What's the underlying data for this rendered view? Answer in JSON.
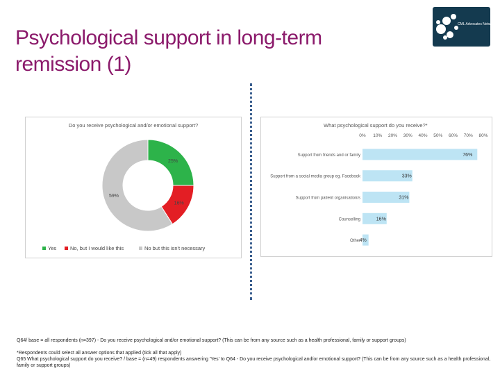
{
  "page": {
    "title_line1": "Psychological support in long-term",
    "title_line2": "remission (1)",
    "logo_text": "CML Advocates Network",
    "footnote1": "Q64/ base = all respondents (n=397) - Do you receive psychological and/or emotional support? (This can be from any source such as a health professional, family or support groups)",
    "footnote2": "*Respondents could select all answer options that applied (tick all that apply)",
    "footnote3": "Q65 What psychological support do you receive? / base = (n=49) respondents answering 'Yes' to Q64 - Do you receive psychological and/or emotional support? (This can be from any source such as a health professional, family or support groups)"
  },
  "chart_data": [
    {
      "type": "pie",
      "title": "Do you receive psychological and/or emotional support?",
      "categories": [
        "Yes",
        "No, but I would like this",
        "No but this isn't necessary"
      ],
      "values": [
        25,
        16,
        59
      ],
      "labels": [
        "25%",
        "16%",
        "59%"
      ],
      "colors": [
        "#2db34a",
        "#e31e24",
        "#c8c8c8"
      ],
      "legend": "bottom"
    },
    {
      "type": "bar",
      "orientation": "horizontal",
      "title": "What psychological support do you receive?*",
      "categories": [
        "Support from friends and or family",
        "Support from a social media group eg. Facebook",
        "Support from patient organisation/s",
        "Counselling",
        "Other"
      ],
      "values": [
        76,
        33,
        31,
        16,
        4
      ],
      "labels": [
        "76%",
        "33%",
        "31%",
        "16%",
        "4%"
      ],
      "xticks": [
        "0%",
        "10%",
        "20%",
        "30%",
        "40%",
        "50%",
        "60%",
        "70%",
        "80%"
      ],
      "xlim": [
        0,
        80
      ],
      "xaxis_position": "top",
      "bar_color": "#bde4f4"
    }
  ]
}
